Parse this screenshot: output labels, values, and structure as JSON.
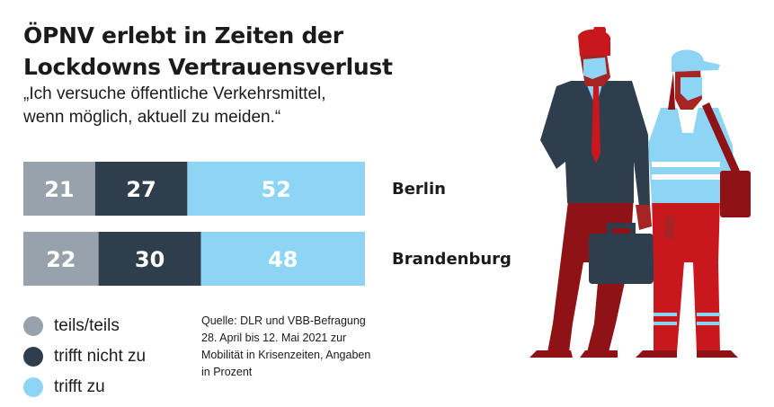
{
  "title_lines": [
    "ÖPNV erlebt in Zeiten der",
    "Lockdowns Vertrauensverlust"
  ],
  "subtitle_lines": [
    "„Ich versuche öffentliche Verkehrsmittel,",
    "wenn möglich, aktuell zu meiden.“"
  ],
  "colors": {
    "teils": "#98a2ad",
    "nicht": "#2f3e4c",
    "zu": "#8ed4f5",
    "text_light": "#ffffff",
    "illustration_red": "#c8171d",
    "illustration_darkred": "#8f1216",
    "illustration_navy": "#2f3e4c",
    "illustration_skyblue": "#8ed4f5",
    "skin": "#a52424"
  },
  "chart_data": {
    "type": "bar",
    "orientation": "horizontal",
    "stacked": true,
    "categories": [
      "Berlin",
      "Brandenburg"
    ],
    "series": [
      {
        "name": "teils/teils",
        "values": [
          21,
          22
        ]
      },
      {
        "name": "trifft nicht zu",
        "values": [
          27,
          30
        ]
      },
      {
        "name": "trifft zu",
        "values": [
          52,
          48
        ]
      }
    ],
    "xlim": [
      0,
      100
    ],
    "grid": false,
    "legend": "bottom-left"
  },
  "legend": [
    {
      "label": "teils/teils"
    },
    {
      "label": "trifft nicht zu"
    },
    {
      "label": "trifft zu"
    }
  ],
  "source_lines": [
    "Quelle: DLR und VBB-Befragung",
    "28. April bis 12. Mai 2021 zur",
    "Mobilität in Krisenzeiten, Angaben",
    "in Prozent"
  ]
}
